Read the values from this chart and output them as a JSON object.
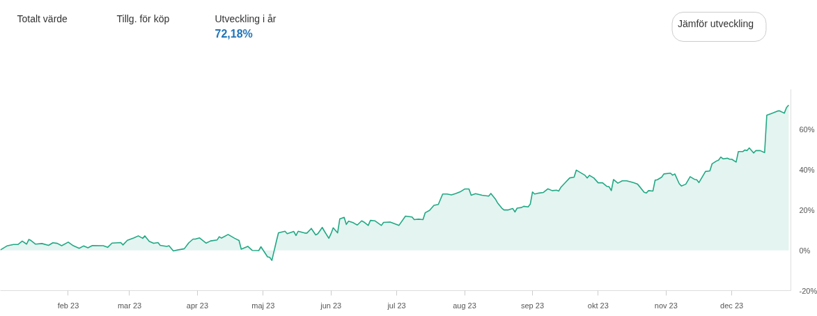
{
  "chart_data": {
    "type": "area",
    "title": "Utveckling i år",
    "subtitle": "72,18%",
    "annotations": [
      "Totalt värde",
      "Tillg. för köp",
      "Jämför utveckling"
    ],
    "x": [
      "2023-01-01",
      "2023-01-04",
      "2023-01-07",
      "2023-01-09",
      "2023-01-11",
      "2023-01-13",
      "2023-01-14",
      "2023-01-15",
      "2023-01-17",
      "2023-01-20",
      "2023-01-23",
      "2023-01-25",
      "2023-01-27",
      "2023-01-29",
      "2023-02-01",
      "2023-02-03",
      "2023-02-06",
      "2023-02-08",
      "2023-02-10",
      "2023-02-12",
      "2023-02-17",
      "2023-02-19",
      "2023-02-21",
      "2023-02-25",
      "2023-02-26",
      "2023-02-28",
      "2023-03-03",
      "2023-03-05",
      "2023-03-07",
      "2023-03-08",
      "2023-03-10",
      "2023-03-12",
      "2023-03-14",
      "2023-03-15",
      "2023-03-18",
      "2023-03-19",
      "2023-03-21",
      "2023-03-23",
      "2023-03-26",
      "2023-03-28",
      "2023-03-30",
      "2023-03-31",
      "2023-04-02",
      "2023-04-05",
      "2023-04-07",
      "2023-04-10",
      "2023-04-11",
      "2023-04-12",
      "2023-04-15",
      "2023-04-18",
      "2023-04-20",
      "2023-04-21",
      "2023-04-24",
      "2023-04-26",
      "2023-04-29",
      "2023-04-30",
      "2023-05-03",
      "2023-05-04",
      "2023-05-05",
      "2023-05-07",
      "2023-05-08",
      "2023-05-11",
      "2023-05-12",
      "2023-05-15",
      "2023-05-16",
      "2023-05-17",
      "2023-05-20",
      "2023-05-21",
      "2023-05-23",
      "2023-05-25",
      "2023-05-26",
      "2023-05-28",
      "2023-05-29",
      "2023-05-31",
      "2023-06-01",
      "2023-06-02",
      "2023-06-04",
      "2023-06-05",
      "2023-06-07",
      "2023-06-08",
      "2023-06-09",
      "2023-06-11",
      "2023-06-13",
      "2023-06-15",
      "2023-06-16",
      "2023-06-18",
      "2023-06-19",
      "2023-06-21",
      "2023-06-24",
      "2023-06-25",
      "2023-06-28",
      "2023-07-02",
      "2023-07-05",
      "2023-07-08",
      "2023-07-09",
      "2023-07-11",
      "2023-07-13",
      "2023-07-14",
      "2023-07-16",
      "2023-07-18",
      "2023-07-20",
      "2023-07-22",
      "2023-07-24",
      "2023-07-26",
      "2023-07-28",
      "2023-07-30",
      "2023-08-01",
      "2023-08-03",
      "2023-08-04",
      "2023-08-06",
      "2023-08-09",
      "2023-08-12",
      "2023-08-13",
      "2023-08-15",
      "2023-08-16",
      "2023-08-18",
      "2023-08-19",
      "2023-08-21",
      "2023-08-23",
      "2023-08-24",
      "2023-08-25",
      "2023-08-27",
      "2023-08-28",
      "2023-08-30",
      "2023-08-31",
      "2023-09-01",
      "2023-09-02",
      "2023-09-04",
      "2023-09-06",
      "2023-09-08",
      "2023-09-10",
      "2023-09-12",
      "2023-09-13",
      "2023-09-14",
      "2023-09-16",
      "2023-09-18",
      "2023-09-20",
      "2023-09-21",
      "2023-09-23",
      "2023-09-25",
      "2023-09-26",
      "2023-09-27",
      "2023-09-29",
      "2023-10-01",
      "2023-10-03",
      "2023-10-05",
      "2023-10-06",
      "2023-10-07",
      "2023-10-08",
      "2023-10-10",
      "2023-10-12",
      "2023-10-14",
      "2023-10-17",
      "2023-10-19",
      "2023-10-20",
      "2023-10-22",
      "2023-10-23",
      "2023-10-24",
      "2023-10-26",
      "2023-10-27",
      "2023-10-28",
      "2023-10-30",
      "2023-10-31",
      "2023-11-03",
      "2023-11-04",
      "2023-11-05",
      "2023-11-07",
      "2023-11-08",
      "2023-11-10",
      "2023-11-12",
      "2023-11-14",
      "2023-11-15",
      "2023-11-16",
      "2023-11-19",
      "2023-11-21",
      "2023-11-22",
      "2023-11-24",
      "2023-11-25",
      "2023-11-26",
      "2023-11-27",
      "2023-11-29",
      "2023-11-30",
      "2023-12-01",
      "2023-12-03",
      "2023-12-04",
      "2023-12-06",
      "2023-12-07",
      "2023-12-08",
      "2023-12-09",
      "2023-12-11",
      "2023-12-12",
      "2023-12-14",
      "2023-12-16",
      "2023-12-17",
      "2023-12-19",
      "2023-12-20",
      "2023-12-22",
      "2023-12-23",
      "2023-12-25",
      "2023-12-26",
      "2023-12-27"
    ],
    "series": [
      {
        "color": "#20a884",
        "values": [
          0.2,
          2.2,
          2.9,
          2.9,
          4.6,
          3.1,
          5.4,
          4.9,
          3.1,
          3.4,
          2.5,
          3.8,
          3.5,
          2.3,
          4.1,
          2.5,
          1.0,
          2.2,
          1.3,
          2.4,
          2.3,
          1.5,
          3.6,
          3.9,
          2.7,
          5.0,
          6.2,
          7.2,
          6.0,
          7.2,
          4.5,
          3.5,
          3.9,
          2.5,
          2.0,
          2.3,
          -0.3,
          0.2,
          0.8,
          3.7,
          5.6,
          5.6,
          6.2,
          3.6,
          4.7,
          5.2,
          6.8,
          6.1,
          7.9,
          6.0,
          4.9,
          0.6,
          2.0,
          0.0,
          -0.1,
          1.8,
          -3.2,
          -3.5,
          -5.0,
          4.3,
          8.7,
          9.5,
          8.3,
          9.4,
          7.4,
          9.5,
          8.6,
          8.6,
          10.9,
          7.7,
          8.3,
          11.4,
          9.5,
          6.0,
          8.3,
          11.2,
          8.7,
          15.6,
          16.4,
          12.9,
          14.5,
          13.8,
          12.6,
          14.7,
          14.1,
          12.4,
          14.9,
          14.7,
          12.4,
          13.9,
          14.1,
          12.4,
          17.0,
          16.6,
          15.3,
          15.5,
          15.3,
          18.7,
          19.9,
          22.4,
          22.8,
          28.0,
          28.0,
          27.6,
          28.3,
          29.1,
          30.5,
          30.5,
          27.4,
          28.2,
          27.4,
          27.0,
          28.3,
          25.6,
          23.7,
          21.0,
          20.1,
          20.1,
          20.8,
          19.1,
          21.0,
          21.3,
          21.9,
          21.6,
          23.0,
          29.0,
          28.0,
          28.5,
          28.8,
          30.6,
          29.7,
          29.9,
          29.5,
          31.4,
          33.7,
          36.0,
          36.4,
          39.9,
          38.6,
          37.3,
          36.0,
          37.3,
          36.0,
          33.6,
          33.6,
          31.8,
          31.6,
          29.7,
          35.2,
          33.4,
          34.6,
          34.6,
          33.7,
          32.9,
          31.6,
          28.9,
          28.5,
          29.7,
          29.5,
          34.9,
          35.1,
          36.4,
          38.0,
          38.4,
          37.4,
          38.0,
          33.2,
          32.0,
          32.9,
          36.6,
          35.3,
          35.1,
          33.7,
          39.2,
          39.5,
          43.0,
          44.4,
          44.9,
          46.4,
          45.5,
          45.8,
          45.3,
          45.3,
          43.9,
          49.1,
          49.1,
          49.9,
          49.6,
          50.9,
          48.4,
          49.6,
          49.6,
          48.6,
          67.2,
          68.0,
          68.4,
          69.3,
          69.3,
          68.2,
          71.0,
          72.2
        ]
      }
    ],
    "xlim": [
      "2023-01-01",
      "2023-12-28"
    ],
    "ylim": [
      -20,
      80
    ],
    "xticks": [
      {
        "value": "2023-02-01",
        "label": "feb 23"
      },
      {
        "value": "2023-03-01",
        "label": "mar 23"
      },
      {
        "value": "2023-04-01",
        "label": "apr 23"
      },
      {
        "value": "2023-05-01",
        "label": "maj 23"
      },
      {
        "value": "2023-06-01",
        "label": "jun 23"
      },
      {
        "value": "2023-07-01",
        "label": "jul 23"
      },
      {
        "value": "2023-08-01",
        "label": "aug 23"
      },
      {
        "value": "2023-09-01",
        "label": "sep 23"
      },
      {
        "value": "2023-10-01",
        "label": "okt 23"
      },
      {
        "value": "2023-11-01",
        "label": "nov 23"
      },
      {
        "value": "2023-12-01",
        "label": "dec 23"
      }
    ],
    "yticks": [
      {
        "value": -20,
        "label": "-20%"
      },
      {
        "value": 0,
        "label": "0%"
      },
      {
        "value": 20,
        "label": "20%"
      },
      {
        "value": 40,
        "label": "40%"
      },
      {
        "value": 60,
        "label": "60%"
      }
    ],
    "grid": false
  }
}
